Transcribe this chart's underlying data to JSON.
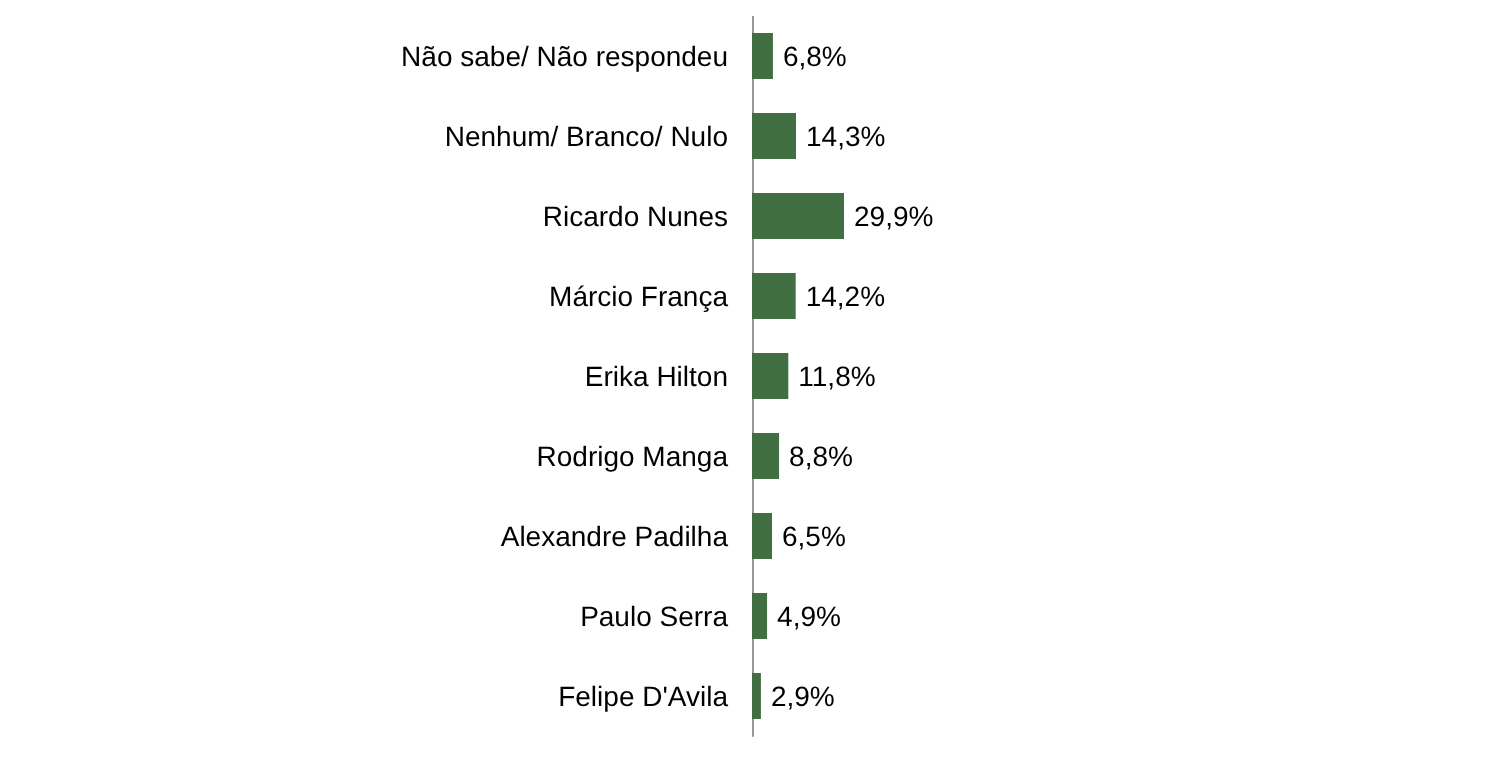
{
  "chart_data": {
    "type": "bar",
    "orientation": "horizontal",
    "categories": [
      "Não sabe/ Não respondeu",
      "Nenhum/ Branco/ Nulo",
      "Ricardo Nunes",
      "Márcio França",
      "Erika Hilton",
      "Rodrigo Manga",
      "Alexandre Padilha",
      "Paulo Serra",
      "Felipe D'Avila"
    ],
    "values": [
      6.8,
      14.3,
      29.9,
      14.2,
      11.8,
      8.8,
      6.5,
      4.9,
      2.9
    ],
    "value_labels": [
      "6,8%",
      "14,3%",
      "29,9%",
      "14,2%",
      "11,8%",
      "8,8%",
      "6,5%",
      "4,9%",
      "2,9%"
    ],
    "color": "#416f41"
  }
}
